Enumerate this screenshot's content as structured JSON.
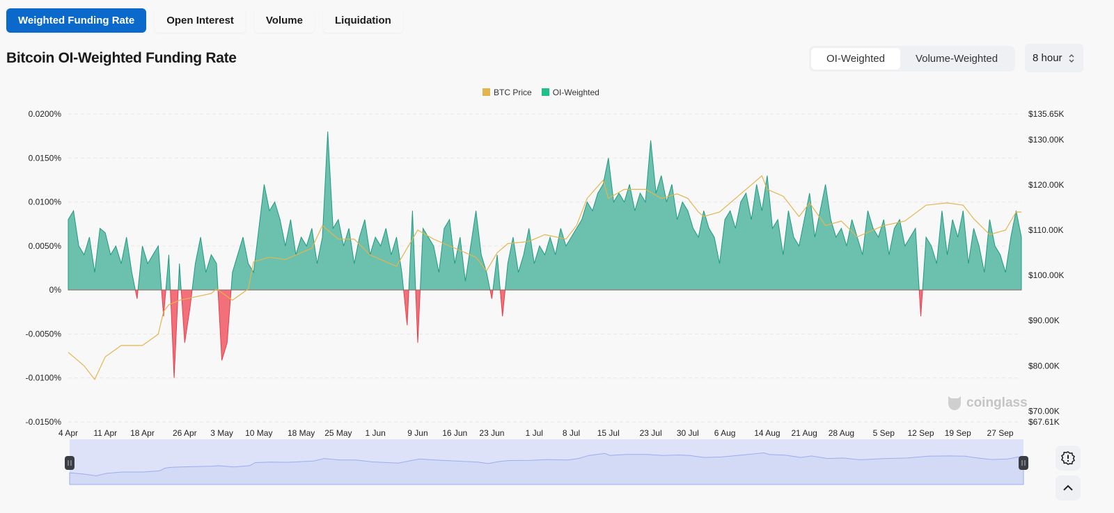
{
  "tabs": [
    {
      "label": "Weighted Funding Rate",
      "active": true
    },
    {
      "label": "Open Interest"
    },
    {
      "label": "Volume"
    },
    {
      "label": "Liquidation"
    }
  ],
  "title": "Bitcoin OI-Weighted Funding Rate",
  "weighting": {
    "options": [
      "OI-Weighted",
      "Volume-Weighted"
    ],
    "selected": "OI-Weighted"
  },
  "interval": {
    "value": "8 hour"
  },
  "watermark": "coinglass",
  "colors": {
    "accent": "#0b69cc",
    "price": "#e8b64a",
    "funding_pos": "#1fb486",
    "funding_neg": "#f04b57"
  },
  "chart_data": {
    "type": "area",
    "title": "Bitcoin OI-Weighted Funding Rate",
    "legend": [
      {
        "name": "BTC Price",
        "color": "#e3b54f"
      },
      {
        "name": "OI-Weighted",
        "color": "#1fc089"
      }
    ],
    "legend_position": "top-center",
    "x_start": "4 Apr",
    "x_unit": "days since 4 Apr",
    "x_range": [
      0,
      180
    ],
    "x_ticks": [
      {
        "day": 0,
        "label": "4 Apr"
      },
      {
        "day": 7,
        "label": "11 Apr"
      },
      {
        "day": 14,
        "label": "18 Apr"
      },
      {
        "day": 22,
        "label": "26 Apr"
      },
      {
        "day": 29,
        "label": "3 May"
      },
      {
        "day": 36,
        "label": "10 May"
      },
      {
        "day": 44,
        "label": "18 May"
      },
      {
        "day": 51,
        "label": "25 May"
      },
      {
        "day": 58,
        "label": "1 Jun"
      },
      {
        "day": 66,
        "label": "9 Jun"
      },
      {
        "day": 73,
        "label": "16 Jun"
      },
      {
        "day": 80,
        "label": "23 Jun"
      },
      {
        "day": 88,
        "label": "1 Jul"
      },
      {
        "day": 95,
        "label": "8 Jul"
      },
      {
        "day": 102,
        "label": "15 Jul"
      },
      {
        "day": 110,
        "label": "23 Jul"
      },
      {
        "day": 117,
        "label": "30 Jul"
      },
      {
        "day": 124,
        "label": "6 Aug"
      },
      {
        "day": 132,
        "label": "14 Aug"
      },
      {
        "day": 139,
        "label": "21 Aug"
      },
      {
        "day": 146,
        "label": "28 Aug"
      },
      {
        "day": 154,
        "label": "5 Sep"
      },
      {
        "day": 161,
        "label": "12 Sep"
      },
      {
        "day": 168,
        "label": "19 Sep"
      },
      {
        "day": 176,
        "label": "27 Sep"
      }
    ],
    "y_left": {
      "range": [
        -0.015,
        0.02
      ],
      "ticks": [
        {
          "v": 0.02,
          "label": "0.0200%"
        },
        {
          "v": 0.015,
          "label": "0.0150%"
        },
        {
          "v": 0.01,
          "label": "0.0100%"
        },
        {
          "v": 0.005,
          "label": "0.0050%"
        },
        {
          "v": 0,
          "label": "0%"
        },
        {
          "v": -0.005,
          "label": "-0.0050%"
        },
        {
          "v": -0.01,
          "label": "-0.0100%"
        },
        {
          "v": -0.015,
          "label": "-0.0150%"
        }
      ]
    },
    "y_right": {
      "range": [
        67.61,
        135.65
      ],
      "unit": "K USD",
      "ticks": [
        {
          "v": 135.65,
          "label": "$135.65K"
        },
        {
          "v": 130,
          "label": "$130.00K"
        },
        {
          "v": 120,
          "label": "$120.00K"
        },
        {
          "v": 110,
          "label": "$110.00K"
        },
        {
          "v": 100,
          "label": "$100.00K"
        },
        {
          "v": 90,
          "label": "$90.00K"
        },
        {
          "v": 80,
          "label": "$80.00K"
        },
        {
          "v": 70,
          "label": "$70.00K"
        },
        {
          "v": 67.61,
          "label": "$67.61K"
        }
      ]
    },
    "grid": true,
    "funding_rate_daily": [
      0.008,
      0.009,
      0.005,
      0.004,
      0.006,
      0.002,
      0.007,
      0.0065,
      0.004,
      0.005,
      0.003,
      0.006,
      0.002,
      -0.001,
      0.005,
      0.003,
      0.004,
      0.005,
      -0.003,
      0.004,
      -0.01,
      0.003,
      -0.006,
      -0.002,
      0.003,
      0.006,
      0.002,
      0.004,
      0.003,
      -0.008,
      -0.006,
      0.002,
      0.004,
      0.006,
      0.003,
      0.002,
      0.007,
      0.012,
      0.009,
      0.01,
      0.008,
      0.005,
      0.008,
      0.004,
      0.006,
      0.005,
      0.007,
      0.003,
      0.006,
      0.018,
      0.007,
      0.008,
      0.005,
      0.007,
      0.003,
      0.006,
      0.008,
      0.004,
      0.006,
      0.005,
      0.007,
      0.004,
      0.006,
      0.002,
      -0.004,
      0.009,
      -0.006,
      0.007,
      0.006,
      0.005,
      0.002,
      0.007,
      0.008,
      0.003,
      0.006,
      0.001,
      0.005,
      0.009,
      0.004,
      0.002,
      -0.001,
      0.004,
      -0.003,
      0.003,
      0.006,
      0.002,
      0.004,
      0.007,
      0.003,
      0.005,
      0.004,
      0.006,
      0.004,
      0.007,
      0.005,
      0.006,
      0.007,
      0.008,
      0.01,
      0.009,
      0.011,
      0.012,
      0.015,
      0.01,
      0.011,
      0.01,
      0.012,
      0.009,
      0.011,
      0.01,
      0.017,
      0.011,
      0.013,
      0.01,
      0.012,
      0.008,
      0.01,
      0.009,
      0.007,
      0.006,
      0.009,
      0.007,
      0.006,
      0.003,
      0.008,
      0.009,
      0.007,
      0.01,
      0.011,
      0.008,
      0.012,
      0.009,
      0.013,
      0.007,
      0.008,
      0.004,
      0.009,
      0.006,
      0.005,
      0.008,
      0.011,
      0.006,
      0.009,
      0.012,
      0.008,
      0.006,
      0.007,
      0.005,
      0.008,
      0.006,
      0.004,
      0.009,
      0.007,
      0.006,
      0.008,
      0.004,
      0.007,
      0.008,
      0.005,
      0.006,
      0.007,
      -0.003,
      0.006,
      0.005,
      0.003,
      0.009,
      0.004,
      0.008,
      0.006,
      0.009,
      0.003,
      0.007,
      0.005,
      0.002,
      0.008,
      0.005,
      0.004,
      0.002,
      0.006,
      0.009,
      0.006
    ],
    "btc_price_k": [
      [
        0,
        83
      ],
      [
        3,
        80
      ],
      [
        5,
        77
      ],
      [
        7,
        82
      ],
      [
        10,
        84.5
      ],
      [
        14,
        84.5
      ],
      [
        17,
        87
      ],
      [
        18,
        92
      ],
      [
        19,
        93.5
      ],
      [
        21,
        94.5
      ],
      [
        27,
        96
      ],
      [
        28,
        97
      ],
      [
        31,
        94.5
      ],
      [
        34,
        97
      ],
      [
        35,
        103
      ],
      [
        38,
        104
      ],
      [
        41,
        103.5
      ],
      [
        46,
        106
      ],
      [
        48,
        111
      ],
      [
        51,
        108
      ],
      [
        54,
        108
      ],
      [
        57,
        104.5
      ],
      [
        62,
        102
      ],
      [
        66,
        110
      ],
      [
        69,
        108
      ],
      [
        73,
        106
      ],
      [
        77,
        104
      ],
      [
        79,
        101
      ],
      [
        81,
        105
      ],
      [
        83,
        107
      ],
      [
        87,
        107.5
      ],
      [
        90,
        109
      ],
      [
        94,
        108
      ],
      [
        96,
        111
      ],
      [
        98,
        117
      ],
      [
        101,
        121
      ],
      [
        102,
        117
      ],
      [
        105,
        119
      ],
      [
        109,
        119
      ],
      [
        112,
        117
      ],
      [
        115,
        118
      ],
      [
        117,
        117
      ],
      [
        119,
        114
      ],
      [
        120,
        113
      ],
      [
        123,
        114
      ],
      [
        126,
        117
      ],
      [
        128,
        119
      ],
      [
        131,
        122
      ],
      [
        132,
        119
      ],
      [
        135,
        117.5
      ],
      [
        138,
        113
      ],
      [
        140,
        116
      ],
      [
        143,
        111
      ],
      [
        146,
        112
      ],
      [
        149,
        108.5
      ],
      [
        150,
        109
      ],
      [
        154,
        111
      ],
      [
        158,
        112
      ],
      [
        162,
        115.5
      ],
      [
        166,
        116
      ],
      [
        169,
        115.5
      ],
      [
        171,
        112.5
      ],
      [
        174,
        109
      ],
      [
        177,
        110
      ],
      [
        179,
        114
      ],
      [
        180,
        114
      ]
    ]
  }
}
